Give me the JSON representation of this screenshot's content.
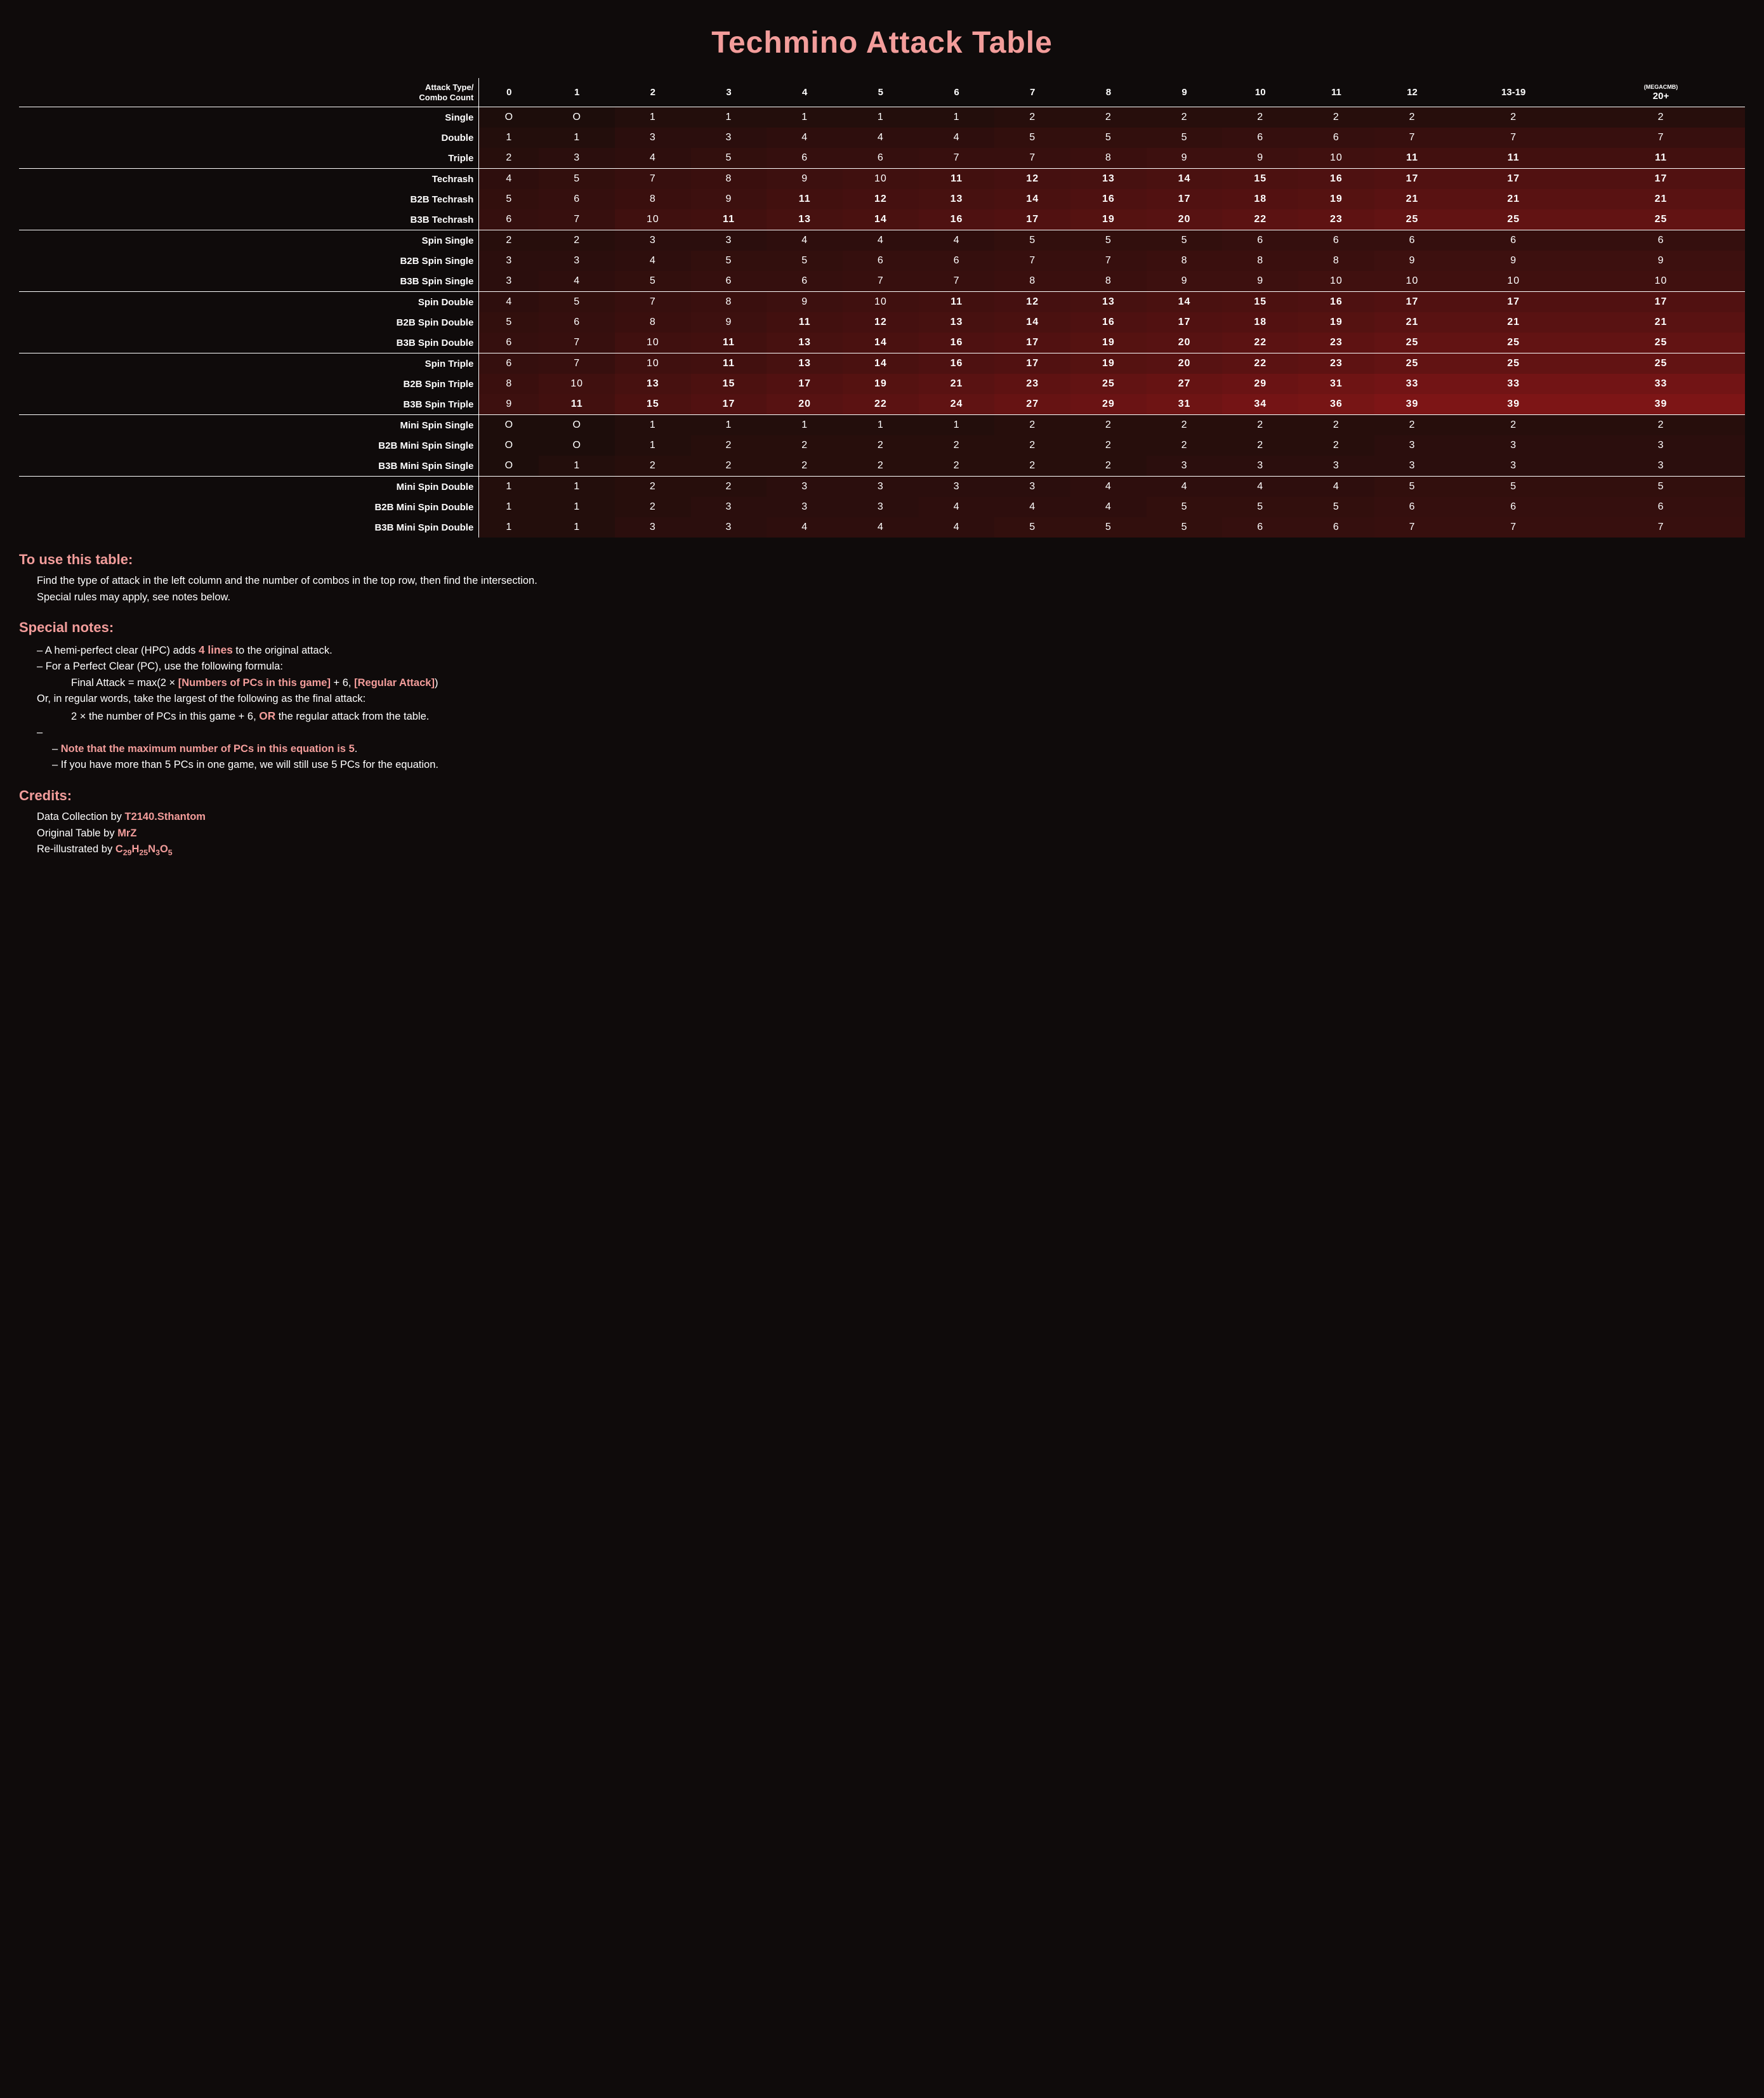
{
  "title": "Techmino Attack Table",
  "corner_label_l1": "Attack Type/",
  "corner_label_l2": "Combo Count",
  "mega_label": "(MEGACMB)",
  "col_headers": [
    "0",
    "1",
    "2",
    "3",
    "4",
    "5",
    "6",
    "7",
    "8",
    "9",
    "10",
    "11",
    "12",
    "13-19",
    "20+"
  ],
  "bold_threshold": 11,
  "heat_max": 39,
  "heat_color_hi": "#7d1516",
  "heat_color_lo": "#1d0d0b",
  "row_groups": [
    {
      "rows": [
        {
          "label": "Single",
          "v": [
            0,
            0,
            1,
            1,
            1,
            1,
            1,
            2,
            2,
            2,
            2,
            2,
            2,
            2,
            2
          ]
        },
        {
          "label": "Double",
          "v": [
            1,
            1,
            3,
            3,
            4,
            4,
            4,
            5,
            5,
            5,
            6,
            6,
            7,
            7,
            7
          ]
        },
        {
          "label": "Triple",
          "v": [
            2,
            3,
            4,
            5,
            6,
            6,
            7,
            7,
            8,
            9,
            9,
            10,
            11,
            11,
            11
          ]
        }
      ]
    },
    {
      "rows": [
        {
          "label": "Techrash",
          "v": [
            4,
            5,
            7,
            8,
            9,
            10,
            11,
            12,
            13,
            14,
            15,
            16,
            17,
            17,
            17
          ]
        },
        {
          "label": "B2B Techrash",
          "v": [
            5,
            6,
            8,
            9,
            11,
            12,
            13,
            14,
            16,
            17,
            18,
            19,
            21,
            21,
            21
          ]
        },
        {
          "label": "B3B Techrash",
          "v": [
            6,
            7,
            10,
            11,
            13,
            14,
            16,
            17,
            19,
            20,
            22,
            23,
            25,
            25,
            25
          ]
        }
      ]
    },
    {
      "rows": [
        {
          "label": "Spin Single",
          "v": [
            2,
            2,
            3,
            3,
            4,
            4,
            4,
            5,
            5,
            5,
            6,
            6,
            6,
            6,
            6
          ]
        },
        {
          "label": "B2B Spin Single",
          "v": [
            3,
            3,
            4,
            5,
            5,
            6,
            6,
            7,
            7,
            8,
            8,
            8,
            9,
            9,
            9
          ]
        },
        {
          "label": "B3B Spin Single",
          "v": [
            3,
            4,
            5,
            6,
            6,
            7,
            7,
            8,
            8,
            9,
            9,
            10,
            10,
            10,
            10
          ]
        }
      ]
    },
    {
      "rows": [
        {
          "label": "Spin Double",
          "v": [
            4,
            5,
            7,
            8,
            9,
            10,
            11,
            12,
            13,
            14,
            15,
            16,
            17,
            17,
            17
          ]
        },
        {
          "label": "B2B Spin Double",
          "v": [
            5,
            6,
            8,
            9,
            11,
            12,
            13,
            14,
            16,
            17,
            18,
            19,
            21,
            21,
            21
          ]
        },
        {
          "label": "B3B Spin Double",
          "v": [
            6,
            7,
            10,
            11,
            13,
            14,
            16,
            17,
            19,
            20,
            22,
            23,
            25,
            25,
            25
          ]
        }
      ]
    },
    {
      "rows": [
        {
          "label": "Spin Triple",
          "v": [
            6,
            7,
            10,
            11,
            13,
            14,
            16,
            17,
            19,
            20,
            22,
            23,
            25,
            25,
            25
          ]
        },
        {
          "label": "B2B Spin Triple",
          "v": [
            8,
            10,
            13,
            15,
            17,
            19,
            21,
            23,
            25,
            27,
            29,
            31,
            33,
            33,
            33
          ]
        },
        {
          "label": "B3B Spin Triple",
          "v": [
            9,
            11,
            15,
            17,
            20,
            22,
            24,
            27,
            29,
            31,
            34,
            36,
            39,
            39,
            39
          ]
        }
      ]
    },
    {
      "rows": [
        {
          "label": "Mini Spin Single",
          "v": [
            0,
            0,
            1,
            1,
            1,
            1,
            1,
            2,
            2,
            2,
            2,
            2,
            2,
            2,
            2
          ]
        },
        {
          "label": "B2B Mini Spin Single",
          "v": [
            0,
            0,
            1,
            2,
            2,
            2,
            2,
            2,
            2,
            2,
            2,
            2,
            3,
            3,
            3
          ]
        },
        {
          "label": "B3B Mini Spin Single",
          "v": [
            0,
            1,
            2,
            2,
            2,
            2,
            2,
            2,
            2,
            3,
            3,
            3,
            3,
            3,
            3
          ]
        }
      ]
    },
    {
      "rows": [
        {
          "label": "Mini Spin Double",
          "v": [
            1,
            1,
            2,
            2,
            3,
            3,
            3,
            3,
            4,
            4,
            4,
            4,
            5,
            5,
            5
          ]
        },
        {
          "label": "B2B Mini Spin Double",
          "v": [
            1,
            1,
            2,
            3,
            3,
            3,
            4,
            4,
            4,
            5,
            5,
            5,
            6,
            6,
            6
          ]
        },
        {
          "label": "B3B Mini Spin Double",
          "v": [
            1,
            1,
            3,
            3,
            4,
            4,
            4,
            5,
            5,
            5,
            6,
            6,
            7,
            7,
            7
          ]
        }
      ]
    }
  ],
  "usage": {
    "heading": "To use this table:",
    "l1": "Find the type of attack in the left column and the number of combos in the top row, then find the intersection.",
    "l2": "Special rules may apply, see notes below."
  },
  "special": {
    "heading": "Special notes:",
    "hpc_pre": "A hemi-perfect clear (HPC) adds ",
    "hpc_bold": "4 lines",
    "hpc_post": " to the original attack.",
    "pc_intro": "For a Perfect Clear (PC), use the following formula:",
    "formula_pre": "Final Attack = max(2 × ",
    "formula_a": "[Numbers of PCs in this game]",
    "formula_mid": " + 6, ",
    "formula_b": "[Regular Attack]",
    "formula_post": ")",
    "words": "Or, in regular words, take the largest of the following as the final attack:",
    "words2_pre": "2 × the number of PCs in this game + 6, ",
    "words2_or": "OR",
    "words2_post": " the regular attack from the table.",
    "note_max": "Note that the maximum number of PCs in this equation is 5",
    "note_max_suffix": ".",
    "note_more": "If you have more than 5 PCs in one game, we will still use 5 PCs for the equation."
  },
  "credits": {
    "heading": "Credits:",
    "data_pre": "Data Collection by ",
    "data_by": "T2140.Sthantom",
    "orig_pre": "Original Table by ",
    "orig_by": "MrZ",
    "illus_pre": "Re-illustrated by ",
    "illus_by_html": "C<span class='sub'>29</span>H<span class='sub'>25</span>N<span class='sub'>3</span>O<span class='sub'>5</span>"
  }
}
